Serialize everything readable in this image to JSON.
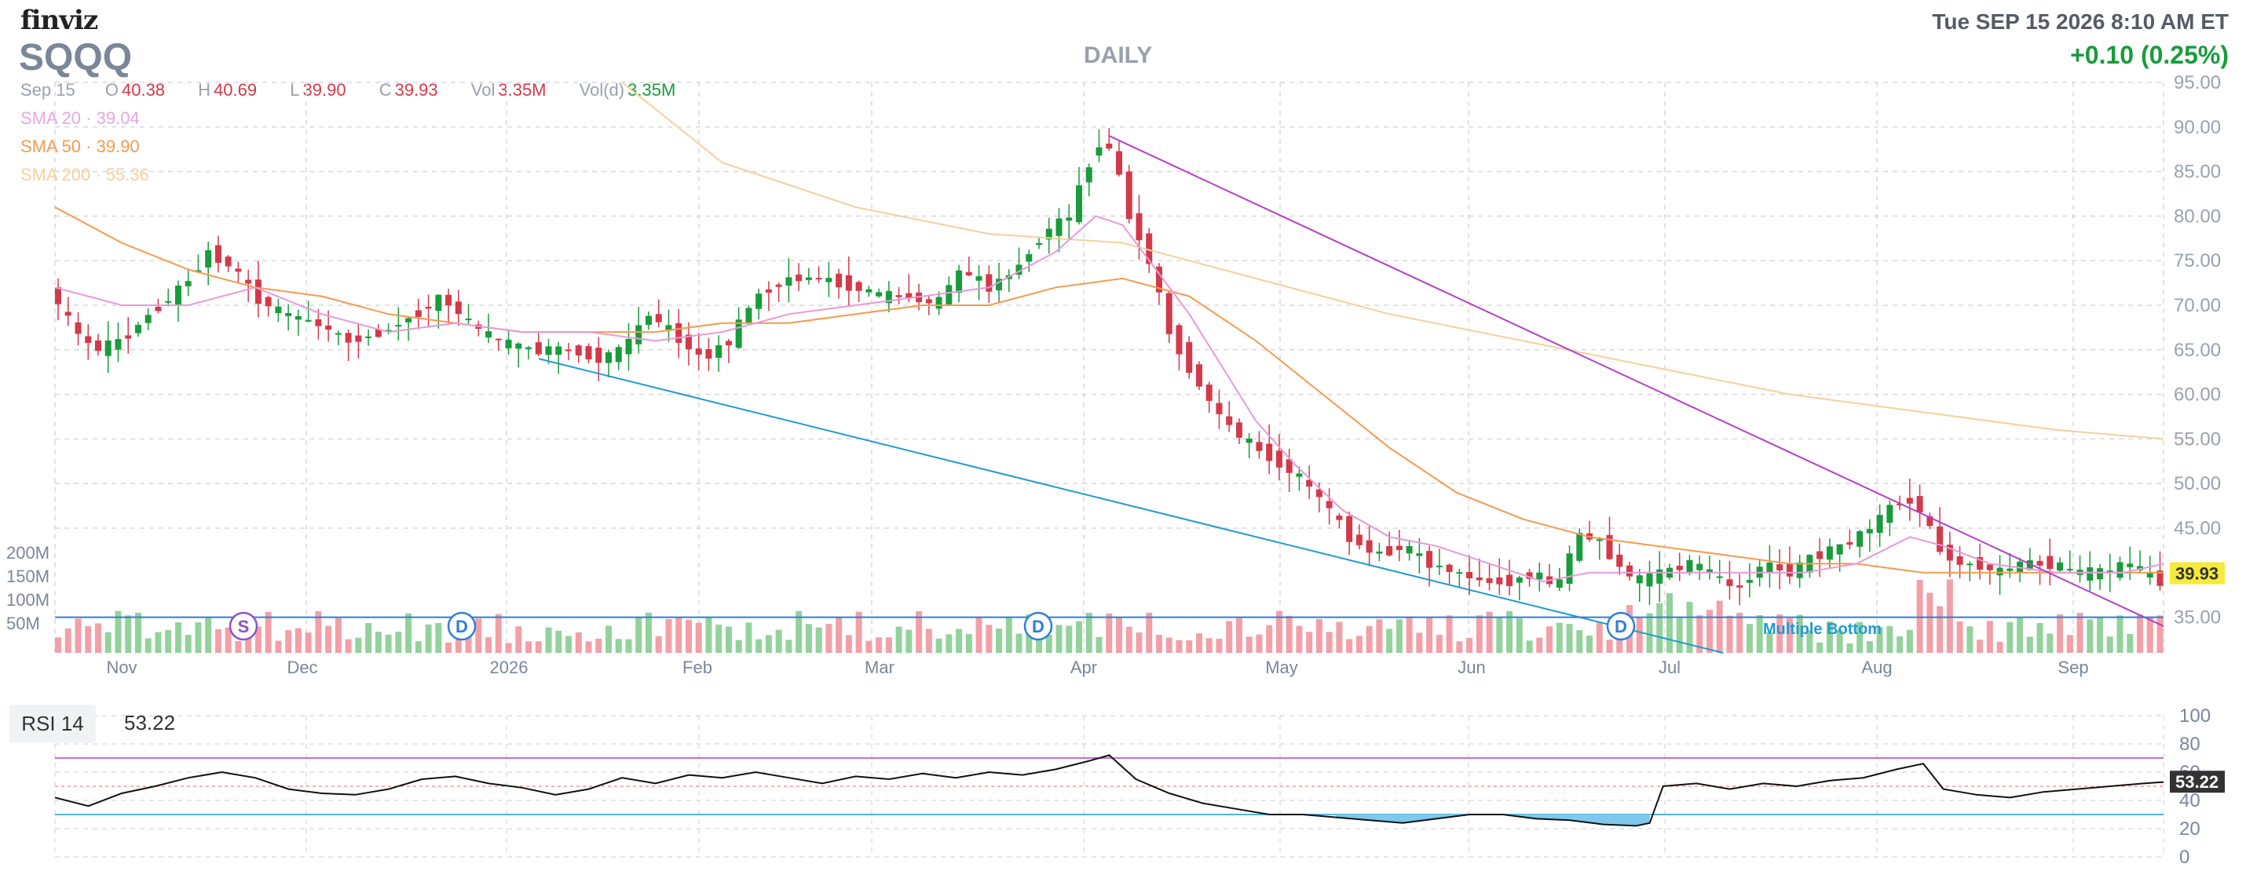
{
  "header": {
    "logo": "finviz",
    "ticker": "SQQQ",
    "period": "DAILY",
    "datetime": "Tue SEP 15 2026 8:10 AM ET",
    "change": "+0.10 (0.25%)"
  },
  "ohlc": {
    "date": "Sep 15",
    "open_label": "O",
    "open": "40.38",
    "high_label": "H",
    "high": "40.69",
    "low_label": "L",
    "low": "39.90",
    "close_label": "C",
    "close": "39.93",
    "vol_label": "Vol",
    "vol": "3.35M",
    "vold_label": "Vol(d)",
    "vold": "3.35M"
  },
  "indicators": {
    "sma20": {
      "label": "SMA 20",
      "value": "39.04",
      "color": "#e69ad8"
    },
    "sma50": {
      "label": "SMA 50",
      "value": "39.90",
      "color": "#f59a4d"
    },
    "sma200": {
      "label": "SMA 200",
      "value": "55.36",
      "color": "#f3d19a"
    }
  },
  "colors": {
    "up": "#1a9b3c",
    "down": "#d23a4a",
    "up_vol": "#93d29b",
    "down_vol": "#f2a0a7",
    "grid": "#d5d8dd",
    "trend_down": "#b63fc9",
    "trend_low": "#1f9bd1"
  },
  "chart_data": [
    {
      "type": "candlestick",
      "price_axis": {
        "ticks": [
          "95.00",
          "90.00",
          "85.00",
          "80.00",
          "75.00",
          "70.00",
          "65.00",
          "60.00",
          "55.00",
          "50.00",
          "45.00",
          "35.00"
        ],
        "range": [
          31,
          95
        ]
      },
      "last_price_label": "39.93",
      "volume_axis": {
        "ticks": [
          "200M",
          "150M",
          "100M",
          "50M"
        ]
      },
      "x_labels": [
        "Nov",
        "Dec",
        "2026",
        "Feb",
        "Mar",
        "Apr",
        "May",
        "Jun",
        "Jul",
        "Aug",
        "Sep"
      ],
      "annotations": [
        {
          "label": "S",
          "color": "#8b52c9"
        },
        {
          "label": "D",
          "color": "#2e7fd6"
        },
        {
          "label": "D",
          "color": "#2e7fd6"
        },
        {
          "label": "D",
          "color": "#2e7fd6"
        }
      ],
      "pattern_label": "Multiple Bottom",
      "close_path": [
        [
          0,
          72
        ],
        [
          8,
          67
        ],
        [
          14,
          65
        ],
        [
          22,
          66
        ],
        [
          30,
          69
        ],
        [
          40,
          72
        ],
        [
          48,
          76
        ],
        [
          56,
          74
        ],
        [
          62,
          71
        ],
        [
          70,
          69
        ],
        [
          80,
          68
        ],
        [
          90,
          66
        ],
        [
          100,
          67
        ],
        [
          110,
          69
        ],
        [
          118,
          71
        ],
        [
          126,
          68
        ],
        [
          134,
          66
        ],
        [
          145,
          65
        ],
        [
          156,
          65
        ],
        [
          166,
          64
        ],
        [
          172,
          65
        ],
        [
          180,
          69
        ],
        [
          190,
          66
        ],
        [
          196,
          64
        ],
        [
          204,
          66
        ],
        [
          212,
          71
        ],
        [
          222,
          73
        ],
        [
          232,
          73
        ],
        [
          242,
          72
        ],
        [
          250,
          71
        ],
        [
          258,
          71
        ],
        [
          266,
          70
        ],
        [
          274,
          74
        ],
        [
          282,
          72
        ],
        [
          290,
          74
        ],
        [
          298,
          78
        ],
        [
          306,
          80
        ],
        [
          312,
          86
        ],
        [
          316,
          89
        ],
        [
          320,
          86
        ],
        [
          324,
          80
        ],
        [
          330,
          75
        ],
        [
          336,
          67
        ],
        [
          342,
          63
        ],
        [
          350,
          58
        ],
        [
          358,
          55
        ],
        [
          366,
          53
        ],
        [
          374,
          51
        ],
        [
          382,
          48
        ],
        [
          390,
          44
        ],
        [
          398,
          42
        ],
        [
          406,
          43
        ],
        [
          414,
          41
        ],
        [
          422,
          40
        ],
        [
          430,
          39
        ],
        [
          438,
          39
        ],
        [
          446,
          40
        ],
        [
          452,
          38
        ],
        [
          458,
          44
        ],
        [
          464,
          44
        ],
        [
          470,
          41
        ],
        [
          476,
          39
        ],
        [
          484,
          40
        ],
        [
          492,
          41
        ],
        [
          498,
          40
        ],
        [
          506,
          38
        ],
        [
          514,
          41
        ],
        [
          522,
          40
        ],
        [
          530,
          42
        ],
        [
          538,
          43
        ],
        [
          546,
          45
        ],
        [
          554,
          48
        ],
        [
          560,
          48
        ],
        [
          566,
          43
        ],
        [
          572,
          41
        ],
        [
          578,
          41
        ],
        [
          584,
          40
        ],
        [
          592,
          41
        ],
        [
          600,
          41
        ],
        [
          608,
          40
        ],
        [
          616,
          40
        ],
        [
          624,
          41
        ],
        [
          632,
          39
        ]
      ],
      "sma_20_path": [
        [
          0,
          72
        ],
        [
          20,
          70
        ],
        [
          40,
          70
        ],
        [
          60,
          72
        ],
        [
          80,
          69
        ],
        [
          100,
          67
        ],
        [
          120,
          68
        ],
        [
          140,
          67
        ],
        [
          160,
          67
        ],
        [
          180,
          66
        ],
        [
          200,
          67
        ],
        [
          220,
          69
        ],
        [
          240,
          70
        ],
        [
          260,
          71
        ],
        [
          280,
          72
        ],
        [
          300,
          76
        ],
        [
          312,
          80
        ],
        [
          320,
          79
        ],
        [
          330,
          74
        ],
        [
          340,
          69
        ],
        [
          350,
          63
        ],
        [
          360,
          57
        ],
        [
          372,
          52
        ],
        [
          386,
          47
        ],
        [
          400,
          44
        ],
        [
          414,
          43
        ],
        [
          430,
          41
        ],
        [
          446,
          39
        ],
        [
          460,
          40
        ],
        [
          476,
          40
        ],
        [
          492,
          40
        ],
        [
          508,
          40
        ],
        [
          524,
          40
        ],
        [
          540,
          41
        ],
        [
          556,
          44
        ],
        [
          566,
          43
        ],
        [
          580,
          41
        ],
        [
          600,
          40
        ],
        [
          620,
          40
        ],
        [
          632,
          41
        ]
      ],
      "sma_50_path": [
        [
          0,
          81
        ],
        [
          20,
          77
        ],
        [
          40,
          74
        ],
        [
          60,
          72
        ],
        [
          80,
          71
        ],
        [
          100,
          69
        ],
        [
          120,
          68
        ],
        [
          140,
          67
        ],
        [
          160,
          67
        ],
        [
          180,
          67
        ],
        [
          200,
          68
        ],
        [
          220,
          68
        ],
        [
          240,
          69
        ],
        [
          260,
          70
        ],
        [
          280,
          70
        ],
        [
          300,
          72
        ],
        [
          320,
          73
        ],
        [
          340,
          71
        ],
        [
          360,
          66
        ],
        [
          380,
          60
        ],
        [
          400,
          54
        ],
        [
          420,
          49
        ],
        [
          440,
          46
        ],
        [
          460,
          44
        ],
        [
          480,
          43
        ],
        [
          500,
          42
        ],
        [
          520,
          41
        ],
        [
          540,
          41
        ],
        [
          560,
          40
        ],
        [
          580,
          40
        ],
        [
          600,
          40
        ],
        [
          632,
          40
        ]
      ],
      "sma_200_path": [
        [
          170,
          95
        ],
        [
          200,
          86
        ],
        [
          240,
          81
        ],
        [
          280,
          78
        ],
        [
          320,
          77
        ],
        [
          360,
          73
        ],
        [
          400,
          69
        ],
        [
          440,
          66
        ],
        [
          480,
          63
        ],
        [
          520,
          60
        ],
        [
          560,
          58
        ],
        [
          600,
          56
        ],
        [
          632,
          55
        ]
      ],
      "trendlines": [
        {
          "name": "descending resistance",
          "from": [
            316,
            89
          ],
          "to": [
            632,
            34
          ]
        },
        {
          "name": "lower trend",
          "from": [
            145,
            64
          ],
          "to": [
            500,
            31
          ]
        },
        {
          "name": "support",
          "from": [
            0,
            35
          ],
          "to": [
            632,
            35
          ]
        }
      ]
    },
    {
      "type": "line",
      "name": "RSI 14",
      "label": "RSI 14",
      "current": "53.22",
      "y_ticks": [
        "100",
        "80",
        "60",
        "40",
        "20",
        "0"
      ],
      "ylim": [
        0,
        100
      ],
      "overbought": 70,
      "oversold": 30,
      "values": [
        [
          0,
          42
        ],
        [
          10,
          36
        ],
        [
          20,
          45
        ],
        [
          30,
          50
        ],
        [
          40,
          56
        ],
        [
          50,
          60
        ],
        [
          60,
          56
        ],
        [
          70,
          48
        ],
        [
          80,
          45
        ],
        [
          90,
          44
        ],
        [
          100,
          48
        ],
        [
          110,
          55
        ],
        [
          120,
          57
        ],
        [
          130,
          52
        ],
        [
          140,
          49
        ],
        [
          150,
          44
        ],
        [
          160,
          48
        ],
        [
          170,
          56
        ],
        [
          180,
          52
        ],
        [
          190,
          58
        ],
        [
          200,
          56
        ],
        [
          210,
          60
        ],
        [
          220,
          56
        ],
        [
          230,
          52
        ],
        [
          240,
          57
        ],
        [
          250,
          55
        ],
        [
          260,
          59
        ],
        [
          270,
          56
        ],
        [
          280,
          60
        ],
        [
          290,
          58
        ],
        [
          300,
          62
        ],
        [
          310,
          68
        ],
        [
          316,
          72
        ],
        [
          324,
          55
        ],
        [
          334,
          45
        ],
        [
          344,
          38
        ],
        [
          354,
          34
        ],
        [
          364,
          30
        ],
        [
          374,
          30
        ],
        [
          384,
          28
        ],
        [
          394,
          26
        ],
        [
          404,
          24
        ],
        [
          414,
          27
        ],
        [
          424,
          30
        ],
        [
          434,
          30
        ],
        [
          444,
          27
        ],
        [
          454,
          26
        ],
        [
          464,
          23
        ],
        [
          474,
          22
        ],
        [
          478,
          24
        ],
        [
          482,
          50
        ],
        [
          492,
          52
        ],
        [
          502,
          48
        ],
        [
          512,
          52
        ],
        [
          522,
          50
        ],
        [
          532,
          54
        ],
        [
          542,
          56
        ],
        [
          552,
          62
        ],
        [
          560,
          66
        ],
        [
          566,
          48
        ],
        [
          576,
          44
        ],
        [
          586,
          42
        ],
        [
          596,
          46
        ],
        [
          606,
          48
        ],
        [
          616,
          50
        ],
        [
          626,
          52
        ],
        [
          632,
          53
        ]
      ]
    }
  ]
}
